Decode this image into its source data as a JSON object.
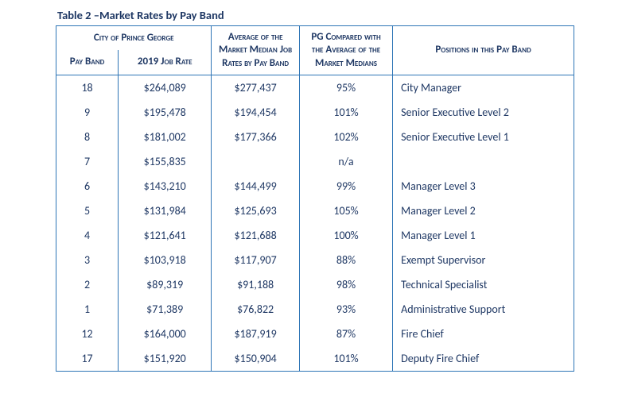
{
  "title": "Table 2 –Market Rates by Pay Band",
  "colors": {
    "text": "#1f3864",
    "border": "#2e75b6",
    "background": "#ffffff"
  },
  "typography": {
    "family": "Calibri",
    "title_fontsize": 14.5,
    "header_fontsize": 13,
    "body_fontsize": 14,
    "header_small_caps": true,
    "header_bold": true
  },
  "table": {
    "column_widths_pct": [
      12,
      18,
      17,
      18,
      35
    ],
    "header": {
      "group": "City of Prince George",
      "pay_band": "Pay Band",
      "job_rate": "2019 Job Rate",
      "avg_market": "Average of the Market Median Job Rates by Pay Band",
      "pg_compared": "PG Compared with the Average of the Market Medians",
      "positions": "Positions in this Pay Band"
    },
    "rows": [
      {
        "pay_band": "18",
        "job_rate": "$264,089",
        "avg_market": "$277,437",
        "pg_compared": "95%",
        "positions": "City Manager"
      },
      {
        "pay_band": "9",
        "job_rate": "$195,478",
        "avg_market": "$194,454",
        "pg_compared": "101%",
        "positions": "Senior Executive Level 2"
      },
      {
        "pay_band": "8",
        "job_rate": "$181,002",
        "avg_market": "$177,366",
        "pg_compared": "102%",
        "positions": "Senior Executive Level 1"
      },
      {
        "pay_band": "7",
        "job_rate": "$155,835",
        "avg_market": "",
        "pg_compared": "n/a",
        "positions": ""
      },
      {
        "pay_band": "6",
        "job_rate": "$143,210",
        "avg_market": "$144,499",
        "pg_compared": "99%",
        "positions": "Manager Level 3"
      },
      {
        "pay_band": "5",
        "job_rate": "$131,984",
        "avg_market": "$125,693",
        "pg_compared": "105%",
        "positions": "Manager Level 2"
      },
      {
        "pay_band": "4",
        "job_rate": "$121,641",
        "avg_market": "$121,688",
        "pg_compared": "100%",
        "positions": "Manager Level 1"
      },
      {
        "pay_band": "3",
        "job_rate": "$103,918",
        "avg_market": "$117,907",
        "pg_compared": "88%",
        "positions": "Exempt Supervisor"
      },
      {
        "pay_band": "2",
        "job_rate": "$89,319",
        "avg_market": "$91,188",
        "pg_compared": "98%",
        "positions": "Technical Specialist"
      },
      {
        "pay_band": "1",
        "job_rate": "$71,389",
        "avg_market": "$76,822",
        "pg_compared": "93%",
        "positions": "Administrative Support"
      },
      {
        "pay_band": "12",
        "job_rate": "$164,000",
        "avg_market": "$187,919",
        "pg_compared": "87%",
        "positions": "Fire Chief"
      },
      {
        "pay_band": "17",
        "job_rate": "$151,920",
        "avg_market": "$150,904",
        "pg_compared": "101%",
        "positions": "Deputy Fire Chief"
      }
    ]
  }
}
